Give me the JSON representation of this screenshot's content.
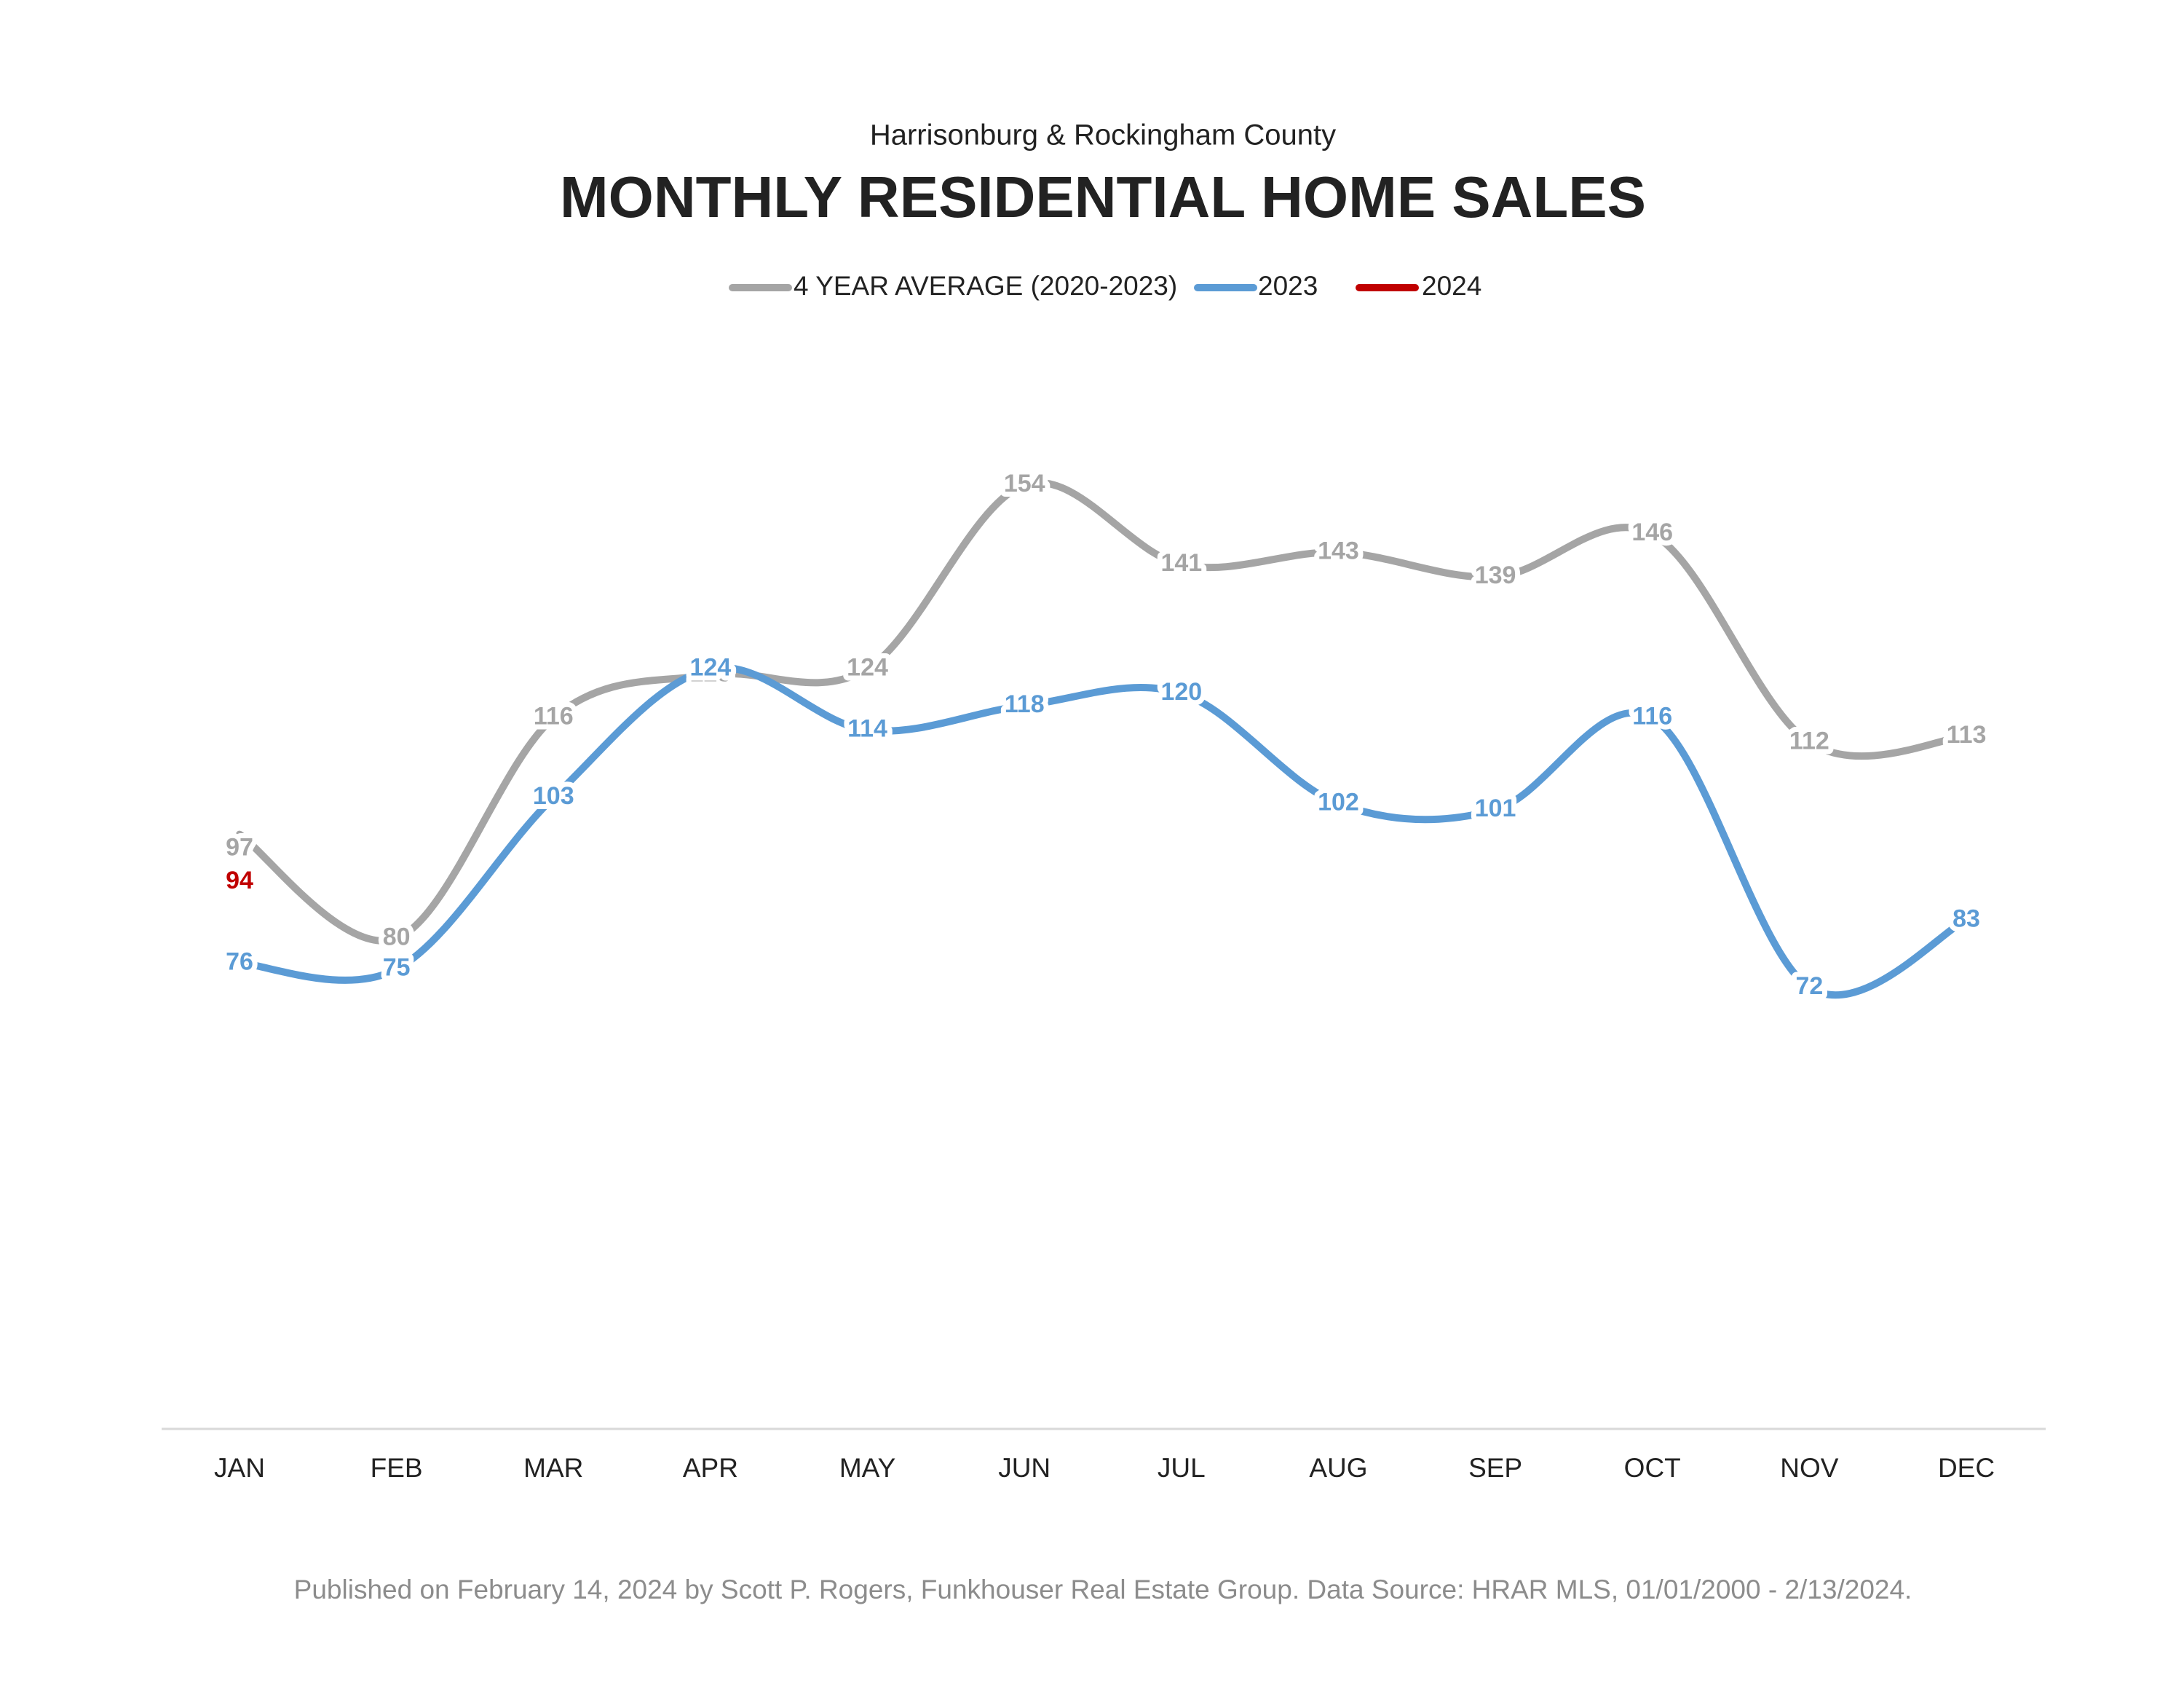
{
  "chart_data": {
    "type": "line",
    "subtitle": "Harrisonburg & Rockingham County",
    "title": "MONTHLY RESIDENTIAL HOME SALES",
    "footer": "Published on February 14, 2024 by Scott P. Rogers, Funkhouser Real Estate Group. Data Source: HRAR MLS, 01/01/2000 - 2/13/2024.",
    "categories": [
      "JAN",
      "FEB",
      "MAR",
      "APR",
      "MAY",
      "JUN",
      "JUL",
      "AUG",
      "SEP",
      "OCT",
      "NOV",
      "DEC"
    ],
    "series": [
      {
        "name": "4 YEAR AVERAGE (2020-2023)",
        "color": "#a5a5a5",
        "values": [
          97,
          80,
          116,
          123,
          124,
          154,
          141,
          143,
          139,
          146,
          112,
          113
        ]
      },
      {
        "name": "2023",
        "color": "#5b9bd5",
        "values": [
          76,
          75,
          103,
          124,
          114,
          118,
          120,
          102,
          101,
          116,
          72,
          83
        ]
      },
      {
        "name": "2024",
        "color": "#c00000",
        "values": [
          94,
          null,
          null,
          null,
          null,
          null,
          null,
          null,
          null,
          null,
          null,
          null
        ]
      }
    ],
    "ylim": [
      0,
      180
    ],
    "smooth": true,
    "grid": false,
    "legend": "top"
  }
}
